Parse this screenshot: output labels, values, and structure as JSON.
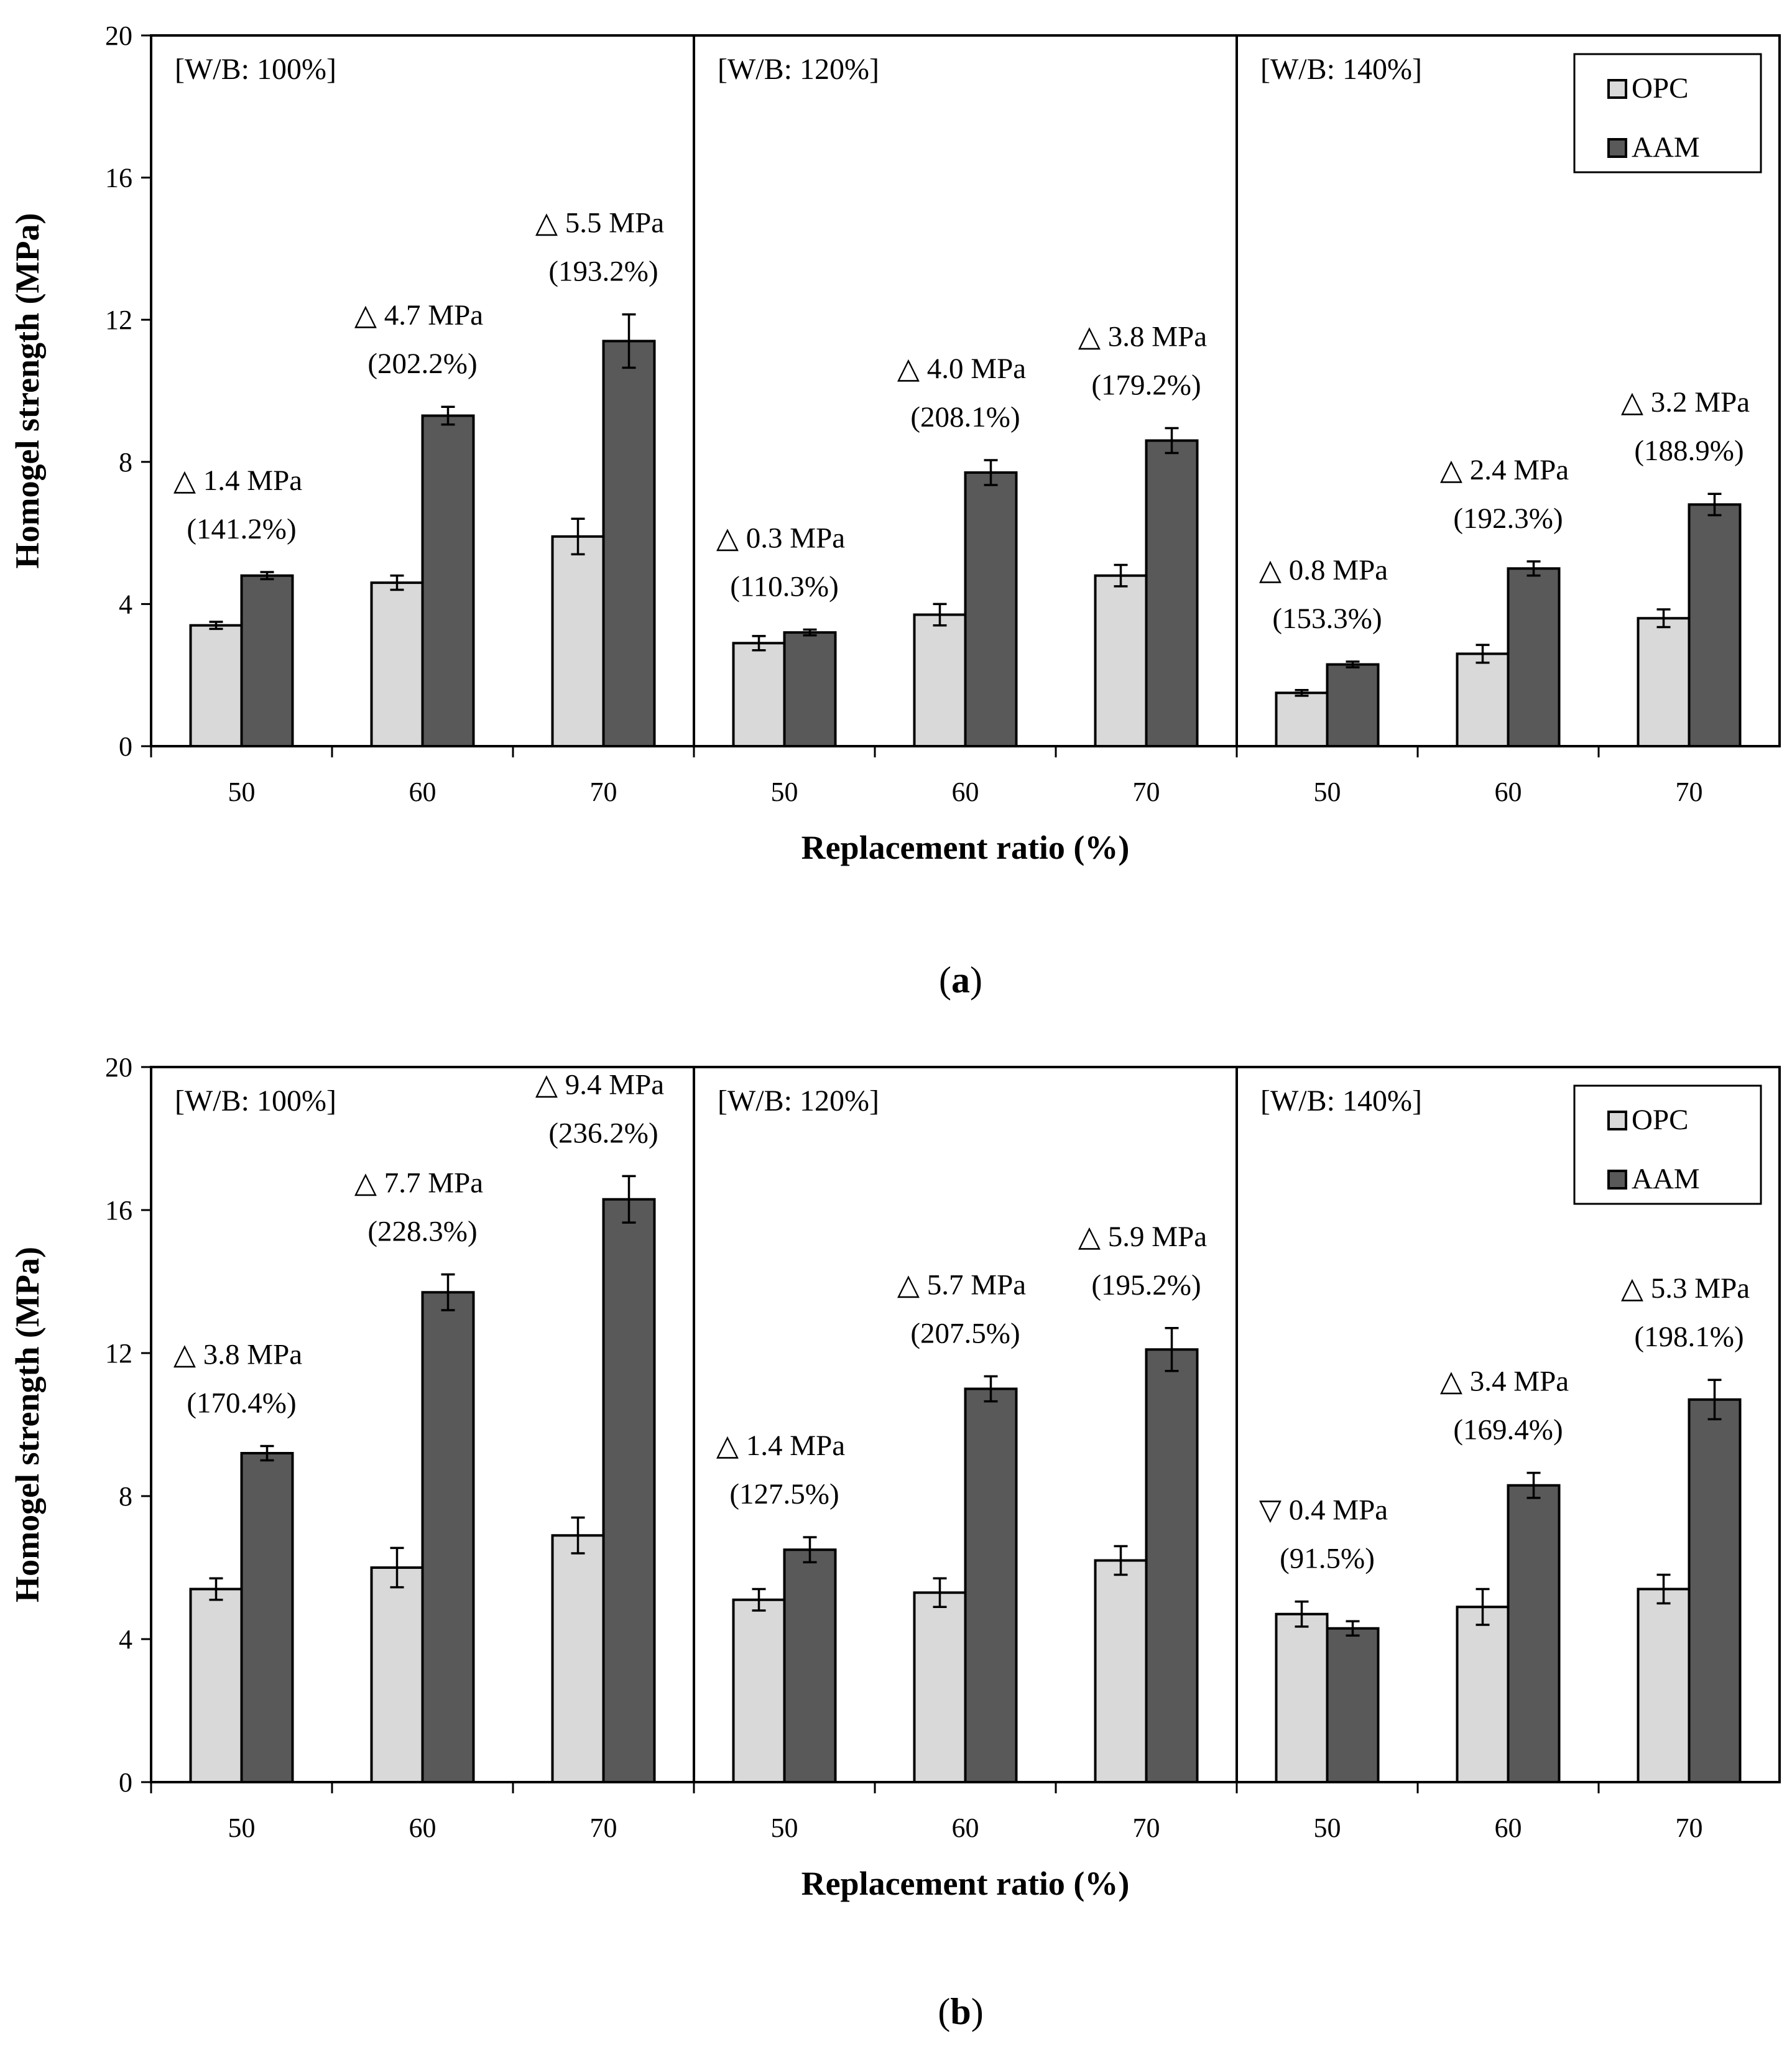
{
  "chart_data": [
    {
      "type": "bar",
      "caption": "a",
      "ylabel": "Homogel strength (MPa)",
      "xlabel": "Replacement ratio (%)",
      "ylim": [
        0,
        20
      ],
      "yticks": [
        "0",
        "4",
        "8",
        "12",
        "16",
        "20"
      ],
      "legend": {
        "position": "top-right",
        "entries": [
          "OPC",
          "AAM"
        ]
      },
      "series_colors": {
        "OPC": "#d9d9d9",
        "AAM": "#595959"
      },
      "panels": [
        {
          "label": "[W/B: 100%]",
          "categories": [
            "50",
            "60",
            "70"
          ],
          "series": [
            {
              "name": "OPC",
              "values": [
                3.4,
                4.6,
                5.9
              ],
              "errors": [
                0.1,
                0.2,
                0.5
              ]
            },
            {
              "name": "AAM",
              "values": [
                4.8,
                9.3,
                11.4
              ],
              "errors": [
                0.1,
                0.25,
                0.75
              ]
            }
          ],
          "annotations": [
            {
              "delta": "△ 1.4 MPa",
              "pct": "(141.2%)"
            },
            {
              "delta": "△ 4.7 MPa",
              "pct": "(202.2%)"
            },
            {
              "delta": "△ 5.5 MPa",
              "pct": "(193.2%)"
            }
          ]
        },
        {
          "label": "[W/B: 120%]",
          "categories": [
            "50",
            "60",
            "70"
          ],
          "series": [
            {
              "name": "OPC",
              "values": [
                2.9,
                3.7,
                4.8
              ],
              "errors": [
                0.2,
                0.3,
                0.3
              ]
            },
            {
              "name": "AAM",
              "values": [
                3.2,
                7.7,
                8.6
              ],
              "errors": [
                0.08,
                0.35,
                0.35
              ]
            }
          ],
          "annotations": [
            {
              "delta": "△ 0.3 MPa",
              "pct": "(110.3%)"
            },
            {
              "delta": "△ 4.0 MPa",
              "pct": "(208.1%)"
            },
            {
              "delta": "△ 3.8 MPa",
              "pct": "(179.2%)"
            }
          ]
        },
        {
          "label": "[W/B: 140%]",
          "categories": [
            "50",
            "60",
            "70"
          ],
          "series": [
            {
              "name": "OPC",
              "values": [
                1.5,
                2.6,
                3.6
              ],
              "errors": [
                0.08,
                0.25,
                0.25
              ]
            },
            {
              "name": "AAM",
              "values": [
                2.3,
                5.0,
                6.8
              ],
              "errors": [
                0.08,
                0.2,
                0.3
              ]
            }
          ],
          "annotations": [
            {
              "delta": "△ 0.8 MPa",
              "pct": "(153.3%)"
            },
            {
              "delta": "△ 2.4 MPa",
              "pct": "(192.3%)"
            },
            {
              "delta": "△ 3.2 MPa",
              "pct": "(188.9%)"
            }
          ]
        }
      ]
    },
    {
      "type": "bar",
      "caption": "b",
      "ylabel": "Homogel strength (MPa)",
      "xlabel": "Replacement ratio (%)",
      "ylim": [
        0,
        20
      ],
      "yticks": [
        "0",
        "4",
        "8",
        "12",
        "16",
        "20"
      ],
      "legend": {
        "position": "top-right",
        "entries": [
          "OPC",
          "AAM"
        ]
      },
      "series_colors": {
        "OPC": "#d9d9d9",
        "AAM": "#595959"
      },
      "panels": [
        {
          "label": "[W/B: 100%]",
          "categories": [
            "50",
            "60",
            "70"
          ],
          "series": [
            {
              "name": "OPC",
              "values": [
                5.4,
                6.0,
                6.9
              ],
              "errors": [
                0.3,
                0.55,
                0.5
              ]
            },
            {
              "name": "AAM",
              "values": [
                9.2,
                13.7,
                16.3
              ],
              "errors": [
                0.2,
                0.5,
                0.65
              ]
            }
          ],
          "annotations": [
            {
              "delta": "△ 3.8 MPa",
              "pct": "(170.4%)"
            },
            {
              "delta": "△ 7.7 MPa",
              "pct": "(228.3%)"
            },
            {
              "delta": "△ 9.4 MPa",
              "pct": "(236.2%)"
            }
          ]
        },
        {
          "label": "[W/B: 120%]",
          "categories": [
            "50",
            "60",
            "70"
          ],
          "series": [
            {
              "name": "OPC",
              "values": [
                5.1,
                5.3,
                6.2
              ],
              "errors": [
                0.3,
                0.4,
                0.4
              ]
            },
            {
              "name": "AAM",
              "values": [
                6.5,
                11.0,
                12.1
              ],
              "errors": [
                0.35,
                0.35,
                0.6
              ]
            }
          ],
          "annotations": [
            {
              "delta": "△ 1.4 MPa",
              "pct": "(127.5%)"
            },
            {
              "delta": "△ 5.7 MPa",
              "pct": "(207.5%)"
            },
            {
              "delta": "△ 5.9 MPa",
              "pct": "(195.2%)"
            }
          ]
        },
        {
          "label": "[W/B: 140%]",
          "categories": [
            "50",
            "60",
            "70"
          ],
          "series": [
            {
              "name": "OPC",
              "values": [
                4.7,
                4.9,
                5.4
              ],
              "errors": [
                0.35,
                0.5,
                0.4
              ]
            },
            {
              "name": "AAM",
              "values": [
                4.3,
                8.3,
                10.7
              ],
              "errors": [
                0.2,
                0.35,
                0.55
              ]
            }
          ],
          "annotations": [
            {
              "delta": "▽ 0.4 MPa",
              "pct": "(91.5%)"
            },
            {
              "delta": "△ 3.4 MPa",
              "pct": "(169.4%)"
            },
            {
              "delta": "△ 5.3 MPa",
              "pct": "(198.1%)"
            }
          ]
        }
      ]
    }
  ]
}
